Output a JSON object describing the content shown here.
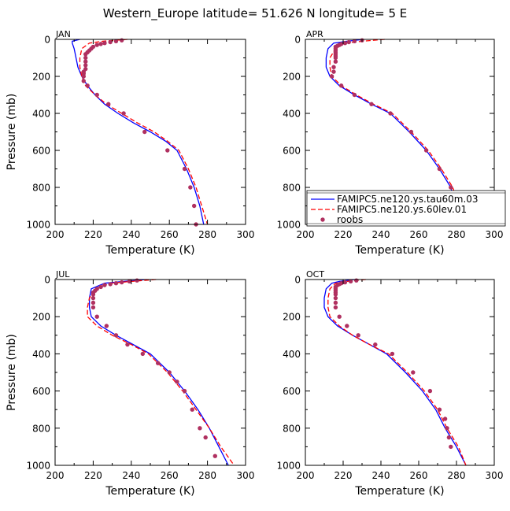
{
  "figure": {
    "title": "Western_Europe  latitude= 51.626 N longitude= 5 E"
  },
  "colors": {
    "series_1": "#0000ff",
    "series_2": "#ff0000",
    "series_3": "#b03060"
  },
  "chart_data": [
    {
      "type": "line",
      "title": "JAN",
      "xlabel": "Temperature (K)",
      "ylabel": "Pressure (mb)",
      "xlim": [
        200,
        300
      ],
      "ylim": [
        1000,
        0
      ],
      "y_inverted": true,
      "xticks": [
        "200",
        "220",
        "240",
        "260",
        "280",
        "300"
      ],
      "yticks": [
        "0",
        "200",
        "400",
        "600",
        "800",
        "1000"
      ],
      "legend": null,
      "series": [
        {
          "style": "solid",
          "color": "#0000ff",
          "x": [
            213,
            209,
            209,
            210,
            211,
            212,
            214,
            217,
            221,
            226,
            233,
            241,
            250,
            258,
            264,
            269,
            273,
            276,
            278
          ],
          "y": [
            0,
            10,
            20,
            50,
            100,
            150,
            200,
            250,
            300,
            350,
            400,
            450,
            500,
            550,
            600,
            700,
            800,
            900,
            1000
          ]
        },
        {
          "style": "dashed",
          "color": "#ff0000",
          "x": [
            238,
            225,
            218,
            214,
            213,
            213,
            214,
            216,
            221,
            227,
            235,
            243,
            252,
            259,
            265,
            270,
            274,
            277,
            280
          ],
          "y": [
            0,
            10,
            20,
            50,
            100,
            150,
            200,
            250,
            300,
            350,
            400,
            450,
            500,
            550,
            600,
            700,
            800,
            900,
            1000
          ]
        },
        {
          "style": "markers",
          "color": "#b03060",
          "x": [
            235,
            232,
            229,
            226,
            224,
            222,
            220,
            219,
            218,
            217,
            216,
            216,
            216,
            216,
            216,
            215,
            215,
            215,
            215,
            217,
            222,
            228,
            236,
            247,
            259,
            268,
            271,
            273,
            274
          ],
          "y": [
            5,
            10,
            15,
            20,
            25,
            30,
            40,
            50,
            60,
            70,
            80,
            100,
            120,
            140,
            160,
            175,
            185,
            200,
            225,
            250,
            300,
            350,
            400,
            500,
            600,
            700,
            800,
            900,
            1000
          ]
        }
      ]
    },
    {
      "type": "line",
      "title": "APR",
      "xlabel": "Temperature (K)",
      "ylabel": "",
      "xlim": [
        200,
        300
      ],
      "ylim": [
        1000,
        0
      ],
      "y_inverted": true,
      "xticks": [
        "200",
        "220",
        "240",
        "260",
        "280",
        "300"
      ],
      "yticks": [
        "0",
        "200",
        "400",
        "600",
        "800",
        "1000"
      ],
      "legend": {
        "location": "lower-right",
        "entries": [
          {
            "label": "FAMIPC5.ne120.ys.tau60m.03",
            "style": "solid",
            "color": "#0000ff"
          },
          {
            "label": "FAMIPC5.ne120.ys.60lev.01",
            "style": "dashed",
            "color": "#ff0000"
          },
          {
            "label": "roobs",
            "style": "markers",
            "color": "#b03060"
          }
        ]
      },
      "series": [
        {
          "style": "solid",
          "color": "#0000ff",
          "x": [
            231,
            222,
            215,
            212,
            211,
            211,
            213,
            218,
            226,
            235,
            245,
            255,
            264,
            271,
            277,
            282
          ],
          "y": [
            0,
            10,
            20,
            50,
            100,
            150,
            200,
            250,
            300,
            350,
            400,
            500,
            600,
            700,
            800,
            1000
          ]
        },
        {
          "style": "dashed",
          "color": "#ff0000",
          "x": [
            242,
            230,
            221,
            216,
            213,
            213,
            214,
            219,
            227,
            236,
            246,
            256,
            265,
            272,
            278,
            285
          ],
          "y": [
            0,
            10,
            20,
            50,
            100,
            150,
            200,
            250,
            300,
            350,
            400,
            500,
            600,
            700,
            800,
            1000
          ]
        },
        {
          "style": "markers",
          "color": "#b03060",
          "x": [
            230,
            226,
            223,
            221,
            219,
            218,
            217,
            216,
            216,
            216,
            216,
            216,
            216,
            216,
            216,
            215,
            215,
            214,
            219,
            226,
            235,
            245,
            256,
            264,
            271,
            277
          ],
          "y": [
            5,
            10,
            15,
            20,
            25,
            30,
            35,
            40,
            50,
            60,
            70,
            80,
            90,
            100,
            120,
            150,
            175,
            200,
            250,
            300,
            350,
            400,
            500,
            600,
            700,
            800
          ]
        }
      ]
    },
    {
      "type": "line",
      "title": "JUL",
      "xlabel": "Temperature (K)",
      "ylabel": "Pressure (mb)",
      "xlim": [
        200,
        300
      ],
      "ylim": [
        1000,
        0
      ],
      "y_inverted": true,
      "xticks": [
        "200",
        "220",
        "240",
        "260",
        "280",
        "300"
      ],
      "yticks": [
        "0",
        "200",
        "400",
        "600",
        "800",
        "1000"
      ],
      "legend": null,
      "series": [
        {
          "style": "solid",
          "color": "#0000ff",
          "x": [
            248,
            236,
            226,
            219,
            218,
            218,
            219,
            224,
            232,
            241,
            250,
            260,
            268,
            275,
            281,
            286,
            291
          ],
          "y": [
            0,
            10,
            20,
            50,
            100,
            150,
            200,
            250,
            300,
            350,
            400,
            500,
            600,
            700,
            800,
            900,
            1000
          ]
        },
        {
          "style": "dashed",
          "color": "#ff0000",
          "x": [
            253,
            240,
            229,
            221,
            218,
            217,
            217,
            222,
            230,
            240,
            249,
            259,
            267,
            274,
            281,
            287,
            294
          ],
          "y": [
            0,
            10,
            20,
            50,
            100,
            150,
            200,
            250,
            300,
            350,
            400,
            500,
            600,
            700,
            800,
            900,
            1000
          ]
        },
        {
          "style": "markers",
          "color": "#b03060",
          "x": [
            243,
            239,
            235,
            232,
            229,
            226,
            224,
            222,
            221,
            220,
            220,
            220,
            220,
            220,
            222,
            227,
            232,
            238,
            246,
            254,
            260,
            264,
            268,
            272,
            276,
            279,
            284
          ],
          "y": [
            5,
            10,
            15,
            20,
            25,
            30,
            40,
            50,
            60,
            70,
            80,
            100,
            125,
            150,
            200,
            250,
            300,
            350,
            400,
            450,
            500,
            550,
            600,
            700,
            800,
            850,
            950
          ]
        }
      ]
    },
    {
      "type": "line",
      "title": "OCT",
      "xlabel": "Temperature (K)",
      "ylabel": "",
      "xlim": [
        200,
        300
      ],
      "ylim": [
        1000,
        0
      ],
      "y_inverted": true,
      "xticks": [
        "200",
        "220",
        "240",
        "260",
        "280",
        "300"
      ],
      "yticks": [
        "0",
        "200",
        "400",
        "600",
        "800",
        "1000"
      ],
      "legend": null,
      "series": [
        {
          "style": "solid",
          "color": "#0000ff",
          "x": [
            226,
            218,
            214,
            211,
            210,
            210,
            212,
            217,
            225,
            234,
            243,
            253,
            262,
            269,
            274,
            277,
            280,
            285
          ],
          "y": [
            0,
            10,
            20,
            50,
            100,
            150,
            200,
            250,
            300,
            350,
            400,
            500,
            600,
            700,
            800,
            850,
            900,
            1000
          ]
        },
        {
          "style": "dashed",
          "color": "#ff0000",
          "x": [
            232,
            222,
            216,
            213,
            212,
            212,
            213,
            218,
            225,
            234,
            244,
            254,
            263,
            270,
            275,
            278,
            281,
            285
          ],
          "y": [
            0,
            10,
            20,
            50,
            100,
            150,
            200,
            250,
            300,
            350,
            400,
            500,
            600,
            700,
            800,
            850,
            900,
            1000
          ]
        },
        {
          "style": "markers",
          "color": "#b03060",
          "x": [
            227,
            224,
            221,
            219,
            218,
            217,
            216,
            216,
            216,
            216,
            216,
            216,
            216,
            216,
            218,
            222,
            228,
            237,
            246,
            257,
            266,
            271,
            274,
            275,
            276,
            277
          ],
          "y": [
            5,
            10,
            15,
            20,
            25,
            30,
            40,
            50,
            60,
            70,
            80,
            100,
            125,
            150,
            200,
            250,
            300,
            350,
            400,
            500,
            600,
            700,
            750,
            800,
            850,
            900
          ]
        }
      ]
    }
  ]
}
